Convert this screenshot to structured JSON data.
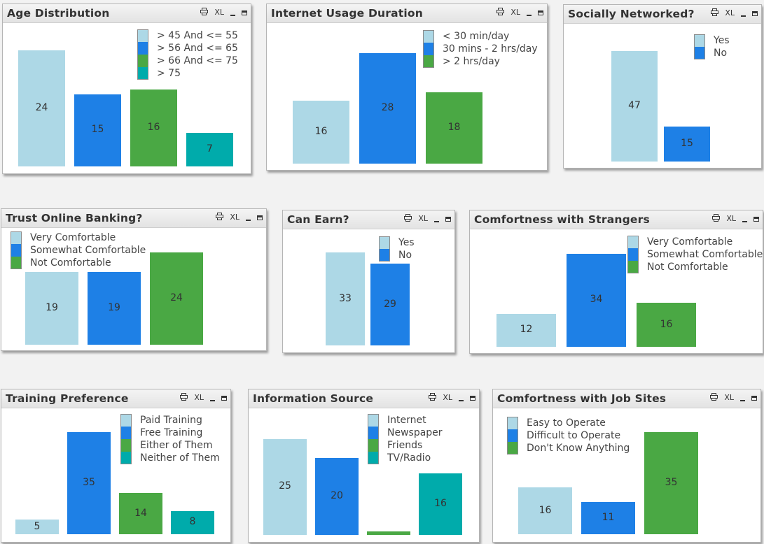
{
  "controls": {
    "print_icon": "print-icon",
    "xl_label": "XL",
    "minimize_icon": "minimize-icon",
    "maximize_icon": "maximize-icon"
  },
  "chart_data": [
    {
      "type": "bar",
      "title": "Age Distribution",
      "categories": [
        "> 45 And <= 55",
        "> 56 And <= 65",
        "> 66 And <= 75",
        "> 75"
      ],
      "values": [
        24,
        15,
        16,
        7
      ],
      "colors": [
        "#add8e6",
        "#1e80e6",
        "#4aa844",
        "#00abab"
      ],
      "legend": "top-right"
    },
    {
      "type": "bar",
      "title": "Internet Usage Duration",
      "categories": [
        "< 30 min/day",
        "30 mins - 2 hrs/day",
        "> 2 hrs/day"
      ],
      "values": [
        16,
        28,
        18
      ],
      "colors": [
        "#add8e6",
        "#1e80e6",
        "#4aa844"
      ],
      "legend": "top-right"
    },
    {
      "type": "bar",
      "title": "Socially Networked?",
      "categories": [
        "Yes",
        "No"
      ],
      "values": [
        47,
        15
      ],
      "colors": [
        "#add8e6",
        "#1e80e6"
      ],
      "legend": "top-right"
    },
    {
      "type": "bar",
      "title": "Trust Online Banking?",
      "categories": [
        "Very Comfortable",
        "Somewhat Comfortable",
        "Not Comfortable"
      ],
      "values": [
        19,
        19,
        24
      ],
      "colors": [
        "#add8e6",
        "#1e80e6",
        "#4aa844"
      ],
      "legend": "top-left"
    },
    {
      "type": "bar",
      "title": "Can Earn?",
      "categories": [
        "Yes",
        "No"
      ],
      "values": [
        33,
        29
      ],
      "colors": [
        "#add8e6",
        "#1e80e6"
      ],
      "legend": "top-center"
    },
    {
      "type": "bar",
      "title": "Comfortness with Strangers",
      "categories": [
        "Very Comfortable",
        "Somewhat Comfortable",
        "Not Comfortable"
      ],
      "values": [
        12,
        34,
        16
      ],
      "colors": [
        "#add8e6",
        "#1e80e6",
        "#4aa844"
      ],
      "legend": "top-right"
    },
    {
      "type": "bar",
      "title": "Training Preference",
      "categories": [
        "Paid Training",
        "Free Training",
        "Either of Them",
        "Neither of Them"
      ],
      "values": [
        5,
        35,
        14,
        8
      ],
      "colors": [
        "#add8e6",
        "#1e80e6",
        "#4aa844",
        "#00abab"
      ],
      "legend": "top-right"
    },
    {
      "type": "bar",
      "title": "Information Source",
      "categories": [
        "Internet",
        "Newspaper",
        "Friends",
        "TV/Radio"
      ],
      "values": [
        25,
        20,
        1,
        16
      ],
      "data_labels": [
        "25",
        "20",
        "",
        "16"
      ],
      "colors": [
        "#add8e6",
        "#1e80e6",
        "#4aa844",
        "#00abab"
      ],
      "legend": "top-center"
    },
    {
      "type": "bar",
      "title": "Comfortness with Job Sites",
      "categories": [
        "Easy to Operate",
        "Difficult to Operate",
        "Don't Know Anything"
      ],
      "values": [
        16,
        11,
        35
      ],
      "colors": [
        "#add8e6",
        "#1e80e6",
        "#4aa844"
      ],
      "legend": "top-left"
    }
  ]
}
